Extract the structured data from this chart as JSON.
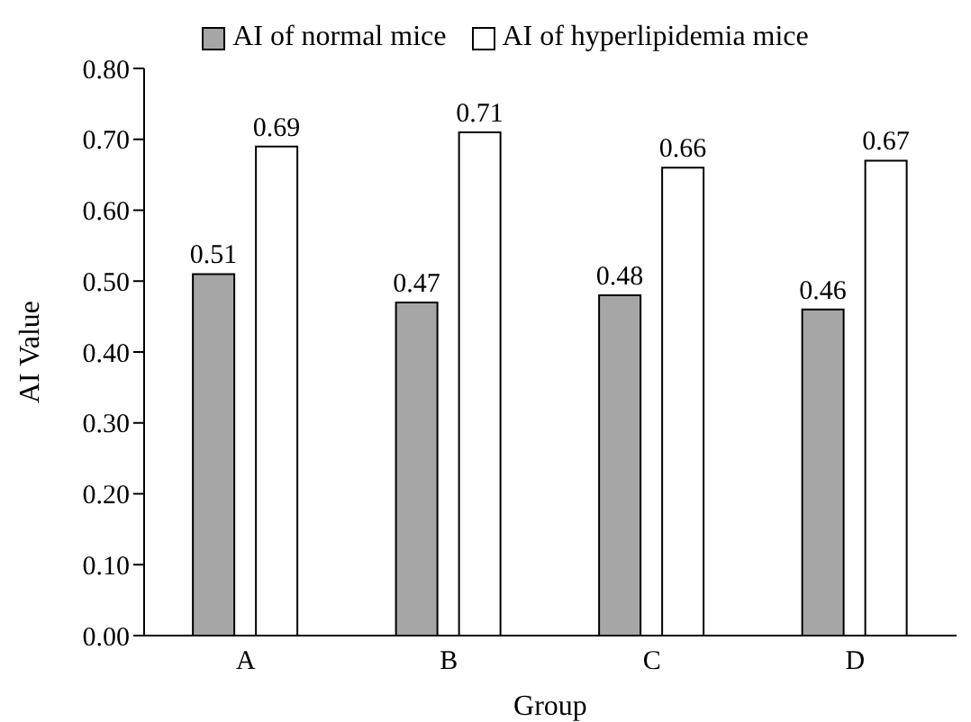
{
  "chart_data": {
    "type": "bar",
    "xlabel": "Group",
    "ylabel": "AI Value",
    "categories": [
      "A",
      "B",
      "C",
      "D"
    ],
    "series": [
      {
        "name": "AI of normal mice",
        "color": "#a6a6a6",
        "values": [
          0.51,
          0.47,
          0.48,
          0.46
        ]
      },
      {
        "name": "AI of hyperlipidemia mice",
        "color": "#ffffff",
        "values": [
          0.69,
          0.71,
          0.66,
          0.67
        ]
      }
    ],
    "ylim": [
      0,
      0.8
    ],
    "yticks": [
      {
        "value": 0,
        "label": "0.00"
      },
      {
        "value": 0.1,
        "label": "0.10"
      },
      {
        "value": 0.2,
        "label": "0.20"
      },
      {
        "value": 0.3,
        "label": "0.30"
      },
      {
        "value": 0.4,
        "label": "0.40"
      },
      {
        "value": 0.5,
        "label": "0.50"
      },
      {
        "value": 0.6,
        "label": "0.60"
      },
      {
        "value": 0.7,
        "label": "0.70"
      },
      {
        "value": 0.8,
        "label": "0.80"
      }
    ],
    "data_labels": true,
    "legend": "top",
    "grid": false
  }
}
